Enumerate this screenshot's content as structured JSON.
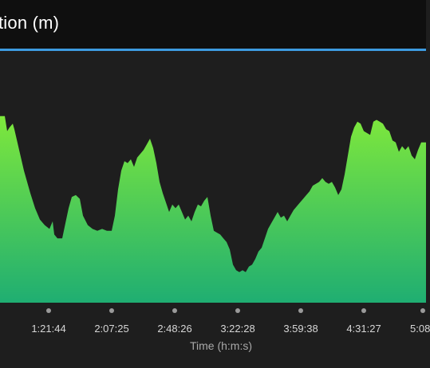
{
  "header": {
    "title": "tion (m)"
  },
  "colors": {
    "header_bg": "#0f0f0f",
    "accent_rule": "#3d9be0",
    "chart_bg": "#1e1e1e",
    "fill_top": "#7ee83c",
    "fill_bottom": "#1fae72"
  },
  "chart_data": {
    "type": "area",
    "title": "tion (m)",
    "xlabel": "Time (h:m:s)",
    "ylabel": "",
    "x_ticks": [
      "1:21:44",
      "2:07:25",
      "2:48:26",
      "3:22:28",
      "3:59:38",
      "4:31:27",
      "5:08"
    ],
    "grid": false,
    "legend": "none",
    "series": [
      {
        "values": [
          {
            "x": 0,
            "y": 0.84
          },
          {
            "x": 6,
            "y": 0.84
          },
          {
            "x": 9,
            "y": 0.76
          },
          {
            "x": 12,
            "y": 0.78
          },
          {
            "x": 16,
            "y": 0.8
          },
          {
            "x": 18,
            "y": 0.77
          },
          {
            "x": 24,
            "y": 0.66
          },
          {
            "x": 30,
            "y": 0.55
          },
          {
            "x": 38,
            "y": 0.43
          },
          {
            "x": 44,
            "y": 0.35
          },
          {
            "x": 50,
            "y": 0.29
          },
          {
            "x": 56,
            "y": 0.26
          },
          {
            "x": 62,
            "y": 0.24
          },
          {
            "x": 66,
            "y": 0.28
          },
          {
            "x": 68,
            "y": 0.21
          },
          {
            "x": 72,
            "y": 0.19
          },
          {
            "x": 78,
            "y": 0.19
          },
          {
            "x": 82,
            "y": 0.27
          },
          {
            "x": 86,
            "y": 0.35
          },
          {
            "x": 90,
            "y": 0.41
          },
          {
            "x": 95,
            "y": 0.42
          },
          {
            "x": 100,
            "y": 0.4
          },
          {
            "x": 104,
            "y": 0.31
          },
          {
            "x": 110,
            "y": 0.26
          },
          {
            "x": 116,
            "y": 0.24
          },
          {
            "x": 122,
            "y": 0.23
          },
          {
            "x": 128,
            "y": 0.24
          },
          {
            "x": 134,
            "y": 0.23
          },
          {
            "x": 140,
            "y": 0.23
          },
          {
            "x": 144,
            "y": 0.31
          },
          {
            "x": 148,
            "y": 0.45
          },
          {
            "x": 152,
            "y": 0.55
          },
          {
            "x": 156,
            "y": 0.6
          },
          {
            "x": 160,
            "y": 0.59
          },
          {
            "x": 164,
            "y": 0.61
          },
          {
            "x": 168,
            "y": 0.57
          },
          {
            "x": 172,
            "y": 0.62
          },
          {
            "x": 176,
            "y": 0.64
          },
          {
            "x": 180,
            "y": 0.66
          },
          {
            "x": 184,
            "y": 0.69
          },
          {
            "x": 188,
            "y": 0.72
          },
          {
            "x": 192,
            "y": 0.67
          },
          {
            "x": 196,
            "y": 0.59
          },
          {
            "x": 200,
            "y": 0.49
          },
          {
            "x": 204,
            "y": 0.43
          },
          {
            "x": 208,
            "y": 0.38
          },
          {
            "x": 212,
            "y": 0.33
          },
          {
            "x": 216,
            "y": 0.37
          },
          {
            "x": 220,
            "y": 0.35
          },
          {
            "x": 224,
            "y": 0.37
          },
          {
            "x": 228,
            "y": 0.33
          },
          {
            "x": 232,
            "y": 0.29
          },
          {
            "x": 236,
            "y": 0.31
          },
          {
            "x": 240,
            "y": 0.28
          },
          {
            "x": 244,
            "y": 0.33
          },
          {
            "x": 248,
            "y": 0.37
          },
          {
            "x": 252,
            "y": 0.36
          },
          {
            "x": 256,
            "y": 0.39
          },
          {
            "x": 260,
            "y": 0.41
          },
          {
            "x": 264,
            "y": 0.31
          },
          {
            "x": 268,
            "y": 0.23
          },
          {
            "x": 272,
            "y": 0.22
          },
          {
            "x": 276,
            "y": 0.21
          },
          {
            "x": 280,
            "y": 0.19
          },
          {
            "x": 284,
            "y": 0.17
          },
          {
            "x": 288,
            "y": 0.13
          },
          {
            "x": 292,
            "y": 0.05
          },
          {
            "x": 296,
            "y": 0.02
          },
          {
            "x": 300,
            "y": 0.01
          },
          {
            "x": 304,
            "y": 0.02
          },
          {
            "x": 308,
            "y": 0.01
          },
          {
            "x": 312,
            "y": 0.04
          },
          {
            "x": 316,
            "y": 0.05
          },
          {
            "x": 320,
            "y": 0.08
          },
          {
            "x": 324,
            "y": 0.12
          },
          {
            "x": 328,
            "y": 0.14
          },
          {
            "x": 332,
            "y": 0.19
          },
          {
            "x": 336,
            "y": 0.24
          },
          {
            "x": 340,
            "y": 0.27
          },
          {
            "x": 344,
            "y": 0.3
          },
          {
            "x": 348,
            "y": 0.33
          },
          {
            "x": 352,
            "y": 0.3
          },
          {
            "x": 356,
            "y": 0.31
          },
          {
            "x": 360,
            "y": 0.28
          },
          {
            "x": 364,
            "y": 0.31
          },
          {
            "x": 368,
            "y": 0.34
          },
          {
            "x": 372,
            "y": 0.36
          },
          {
            "x": 376,
            "y": 0.38
          },
          {
            "x": 380,
            "y": 0.4
          },
          {
            "x": 384,
            "y": 0.42
          },
          {
            "x": 388,
            "y": 0.44
          },
          {
            "x": 392,
            "y": 0.47
          },
          {
            "x": 396,
            "y": 0.48
          },
          {
            "x": 400,
            "y": 0.49
          },
          {
            "x": 404,
            "y": 0.51
          },
          {
            "x": 408,
            "y": 0.49
          },
          {
            "x": 412,
            "y": 0.48
          },
          {
            "x": 416,
            "y": 0.49
          },
          {
            "x": 420,
            "y": 0.46
          },
          {
            "x": 424,
            "y": 0.42
          },
          {
            "x": 428,
            "y": 0.45
          },
          {
            "x": 432,
            "y": 0.53
          },
          {
            "x": 436,
            "y": 0.63
          },
          {
            "x": 440,
            "y": 0.73
          },
          {
            "x": 444,
            "y": 0.78
          },
          {
            "x": 448,
            "y": 0.81
          },
          {
            "x": 452,
            "y": 0.8
          },
          {
            "x": 456,
            "y": 0.76
          },
          {
            "x": 460,
            "y": 0.75
          },
          {
            "x": 464,
            "y": 0.74
          },
          {
            "x": 468,
            "y": 0.81
          },
          {
            "x": 472,
            "y": 0.82
          },
          {
            "x": 476,
            "y": 0.81
          },
          {
            "x": 480,
            "y": 0.8
          },
          {
            "x": 484,
            "y": 0.77
          },
          {
            "x": 488,
            "y": 0.76
          },
          {
            "x": 492,
            "y": 0.71
          },
          {
            "x": 496,
            "y": 0.7
          },
          {
            "x": 500,
            "y": 0.65
          },
          {
            "x": 504,
            "y": 0.68
          },
          {
            "x": 508,
            "y": 0.66
          },
          {
            "x": 512,
            "y": 0.68
          },
          {
            "x": 516,
            "y": 0.63
          },
          {
            "x": 520,
            "y": 0.61
          },
          {
            "x": 524,
            "y": 0.66
          },
          {
            "x": 528,
            "y": 0.7
          },
          {
            "x": 534,
            "y": 0.7
          }
        ]
      }
    ]
  }
}
